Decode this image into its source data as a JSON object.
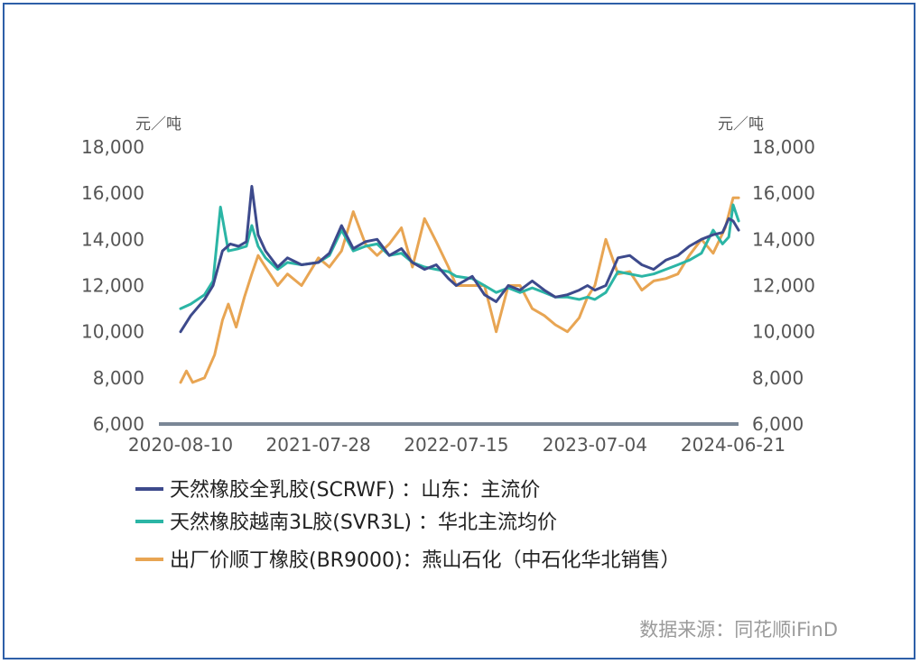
{
  "chart_data": {
    "type": "line",
    "title": "",
    "left_unit": "元／吨",
    "right_unit": "元／吨",
    "ylim": [
      6000,
      18000
    ],
    "yticks": [
      "18,000",
      "16,000",
      "14,000",
      "12,000",
      "10,000",
      "8,000",
      "6,000"
    ],
    "y2ticks": [
      "18,000",
      "16,000",
      "14,000",
      "12,000",
      "10,000",
      "8,000",
      "6,000"
    ],
    "xticks": [
      "2020-08-10",
      "2021-07-28",
      "2022-07-15",
      "2023-07-04",
      "2024-06-21"
    ],
    "legend_position": "bottom",
    "source": "数据来源：同花顺iFinD",
    "series": [
      {
        "name": "天然橡胶全乳胶(SCRWF) ：山东：主流价",
        "color": "#3d4a8c",
        "x": [
          "2020-08-10",
          "2020-09-05",
          "2020-10-10",
          "2020-11-01",
          "2020-11-25",
          "2020-12-15",
          "2021-01-05",
          "2021-01-25",
          "2021-02-08",
          "2021-02-24",
          "2021-03-15",
          "2021-04-15",
          "2021-05-10",
          "2021-06-15",
          "2021-07-28",
          "2021-08-25",
          "2021-09-25",
          "2021-10-25",
          "2021-11-25",
          "2021-12-25",
          "2022-01-25",
          "2022-02-25",
          "2022-03-25",
          "2022-04-25",
          "2022-05-25",
          "2022-06-25",
          "2022-07-15",
          "2022-08-25",
          "2022-09-25",
          "2022-10-25",
          "2022-11-25",
          "2022-12-25",
          "2023-01-25",
          "2023-02-25",
          "2023-03-25",
          "2023-04-25",
          "2023-05-25",
          "2023-06-15",
          "2023-07-04",
          "2023-08-01",
          "2023-09-01",
          "2023-10-01",
          "2023-11-01",
          "2023-12-01",
          "2024-01-01",
          "2024-02-01",
          "2024-03-01",
          "2024-04-01",
          "2024-05-01",
          "2024-05-25",
          "2024-06-10",
          "2024-06-21",
          "2024-07-05"
        ],
        "y": [
          10000,
          10700,
          11400,
          12000,
          13500,
          13800,
          13700,
          13900,
          16300,
          14200,
          13500,
          12800,
          13200,
          12900,
          13000,
          13400,
          14600,
          13600,
          13900,
          14000,
          13300,
          13600,
          13000,
          12700,
          12900,
          12300,
          12000,
          12400,
          11600,
          11300,
          12000,
          11800,
          12200,
          11800,
          11500,
          11600,
          11800,
          12000,
          11800,
          12000,
          13200,
          13300,
          12900,
          12700,
          13100,
          13300,
          13700,
          14000,
          14200,
          14300,
          14900,
          14800,
          14400
        ]
      },
      {
        "name": "天然橡胶越南3L胶(SVR3L) ：华北主流均价",
        "color": "#2bb5a5",
        "x": [
          "2020-08-10",
          "2020-09-05",
          "2020-10-10",
          "2020-11-01",
          "2020-11-20",
          "2020-12-10",
          "2021-01-05",
          "2021-01-25",
          "2021-02-08",
          "2021-02-24",
          "2021-03-15",
          "2021-04-15",
          "2021-05-10",
          "2021-06-15",
          "2021-07-28",
          "2021-08-25",
          "2021-09-25",
          "2021-10-25",
          "2021-11-25",
          "2021-12-25",
          "2022-01-25",
          "2022-02-25",
          "2022-03-25",
          "2022-04-25",
          "2022-05-25",
          "2022-06-25",
          "2022-07-15",
          "2022-08-25",
          "2022-09-25",
          "2022-10-25",
          "2022-11-25",
          "2022-12-25",
          "2023-01-25",
          "2023-02-25",
          "2023-03-25",
          "2023-04-25",
          "2023-05-25",
          "2023-06-15",
          "2023-07-04",
          "2023-08-01",
          "2023-09-01",
          "2023-10-01",
          "2023-11-01",
          "2023-12-01",
          "2024-01-01",
          "2024-02-01",
          "2024-03-01",
          "2024-04-01",
          "2024-05-01",
          "2024-05-25",
          "2024-06-10",
          "2024-06-21",
          "2024-07-05"
        ],
        "y": [
          11000,
          11200,
          11600,
          12200,
          15400,
          13500,
          13600,
          13700,
          14600,
          13700,
          13200,
          12700,
          13000,
          12900,
          13000,
          13300,
          14400,
          13500,
          13700,
          13800,
          13300,
          13400,
          13000,
          12800,
          12700,
          12600,
          12400,
          12300,
          12000,
          11700,
          11900,
          11700,
          11900,
          11700,
          11500,
          11500,
          11400,
          11500,
          11400,
          11700,
          12600,
          12500,
          12400,
          12500,
          12700,
          12900,
          13100,
          13400,
          14400,
          13800,
          14100,
          15500,
          14800
        ]
      },
      {
        "name": "出厂价顺丁橡胶(BR9000)：燕山石化（中石化华北销售）",
        "color": "#e8a553",
        "x": [
          "2020-08-10",
          "2020-08-25",
          "2020-09-10",
          "2020-10-10",
          "2020-11-05",
          "2020-11-25",
          "2020-12-10",
          "2020-12-30",
          "2021-01-20",
          "2021-02-08",
          "2021-02-24",
          "2021-03-15",
          "2021-04-15",
          "2021-05-10",
          "2021-06-15",
          "2021-07-28",
          "2021-08-25",
          "2021-09-25",
          "2021-10-25",
          "2021-11-25",
          "2021-12-25",
          "2022-01-25",
          "2022-02-25",
          "2022-03-25",
          "2022-04-25",
          "2022-05-25",
          "2022-06-25",
          "2022-07-15",
          "2022-08-25",
          "2022-09-25",
          "2022-10-25",
          "2022-11-25",
          "2022-12-25",
          "2023-01-25",
          "2023-02-25",
          "2023-03-25",
          "2023-04-25",
          "2023-05-25",
          "2023-06-15",
          "2023-07-04",
          "2023-08-01",
          "2023-09-01",
          "2023-10-01",
          "2023-11-01",
          "2023-12-01",
          "2024-01-01",
          "2024-02-01",
          "2024-03-01",
          "2024-04-01",
          "2024-05-01",
          "2024-06-01",
          "2024-06-21",
          "2024-07-05"
        ],
        "y": [
          7800,
          8300,
          7800,
          8000,
          9000,
          10500,
          11200,
          10200,
          11500,
          12500,
          13300,
          12800,
          12000,
          12500,
          12000,
          13200,
          12800,
          13500,
          15200,
          13800,
          13300,
          13800,
          14500,
          12800,
          14900,
          13900,
          12800,
          12000,
          12000,
          12000,
          10000,
          12000,
          12000,
          11000,
          10700,
          10300,
          10000,
          10600,
          11500,
          12000,
          14000,
          12500,
          12600,
          11800,
          12200,
          12300,
          12500,
          13300,
          14000,
          13400,
          14500,
          15800,
          15800
        ]
      }
    ]
  }
}
